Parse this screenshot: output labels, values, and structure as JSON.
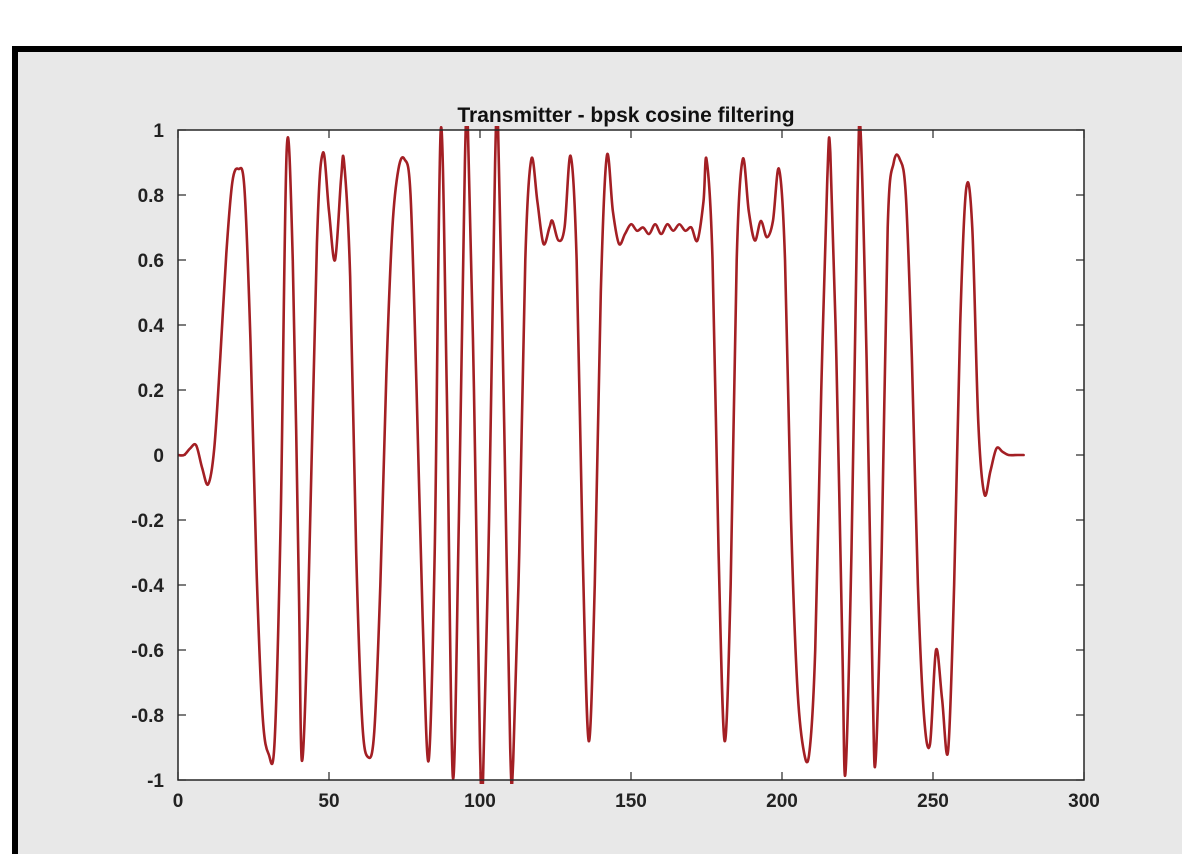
{
  "colors": {
    "figure_background": "#e8e8e8",
    "axes_background": "#ffffff",
    "axes_color": "#262626",
    "line_color": "#a31f24"
  },
  "chart_data": {
    "type": "line",
    "title": "Transmitter - bpsk cosine filtering",
    "xlabel": "",
    "ylabel": "",
    "xlim": [
      0,
      300
    ],
    "ylim": [
      -1,
      1
    ],
    "x_ticks": [
      0,
      50,
      100,
      150,
      200,
      250,
      300
    ],
    "y_ticks": [
      1,
      0.8,
      0.6,
      0.4,
      0.2,
      0,
      -0.2,
      -0.4,
      -0.6,
      -0.8,
      -1
    ],
    "x_tick_labels": [
      "0",
      "50",
      "100",
      "150",
      "200",
      "250",
      "300"
    ],
    "y_tick_labels": [
      "1",
      "0.8",
      "0.6",
      "0.4",
      "0.2",
      "0",
      "-0.2",
      "-0.4",
      "-0.6",
      "-0.8",
      "-1"
    ],
    "grid": false,
    "legend": "none",
    "series": [
      {
        "color": "#a31f24",
        "points": [
          [
            0,
            0
          ],
          [
            2,
            0
          ],
          [
            4,
            0.02
          ],
          [
            6,
            0.03
          ],
          [
            8,
            -0.04
          ],
          [
            10,
            -0.09
          ],
          [
            12,
            0.02
          ],
          [
            14,
            0.3
          ],
          [
            16,
            0.62
          ],
          [
            18,
            0.84
          ],
          [
            20,
            0.88
          ],
          [
            22,
            0.82
          ],
          [
            24,
            0.35
          ],
          [
            26,
            -0.35
          ],
          [
            28,
            -0.8
          ],
          [
            30,
            -0.92
          ],
          [
            32,
            -0.88
          ],
          [
            34,
            -0.2
          ],
          [
            36,
            0.94
          ],
          [
            38,
            0.6
          ],
          [
            40,
            -0.4
          ],
          [
            41,
            -0.94
          ],
          [
            43,
            -0.5
          ],
          [
            46,
            0.65
          ],
          [
            48,
            0.93
          ],
          [
            50,
            0.75
          ],
          [
            52,
            0.6
          ],
          [
            54,
            0.85
          ],
          [
            55,
            0.9
          ],
          [
            57,
            0.55
          ],
          [
            59,
            -0.3
          ],
          [
            61,
            -0.82
          ],
          [
            63,
            -0.93
          ],
          [
            65,
            -0.85
          ],
          [
            67,
            -0.4
          ],
          [
            69,
            0.25
          ],
          [
            71,
            0.7
          ],
          [
            73,
            0.88
          ],
          [
            75,
            0.91
          ],
          [
            77,
            0.8
          ],
          [
            79,
            0.2
          ],
          [
            81,
            -0.5
          ],
          [
            83,
            -0.94
          ],
          [
            85,
            -0.3
          ],
          [
            87,
            1.0
          ],
          [
            89,
            0.2
          ],
          [
            91,
            -0.99
          ],
          [
            93,
            -0.2
          ],
          [
            95,
            0.9
          ],
          [
            96,
            1.0
          ],
          [
            98,
            0.2
          ],
          [
            100,
            -0.9
          ],
          [
            101,
            -1.0
          ],
          [
            103,
            -0.2
          ],
          [
            105,
            0.9
          ],
          [
            106,
            1.0
          ],
          [
            108,
            0.1
          ],
          [
            110,
            -0.9
          ],
          [
            111,
            -0.94
          ],
          [
            113,
            -0.3
          ],
          [
            115,
            0.6
          ],
          [
            117,
            0.91
          ],
          [
            119,
            0.78
          ],
          [
            121,
            0.65
          ],
          [
            123,
            0.7
          ],
          [
            124,
            0.72
          ],
          [
            126,
            0.66
          ],
          [
            128,
            0.7
          ],
          [
            130,
            0.92
          ],
          [
            132,
            0.6
          ],
          [
            134,
            -0.3
          ],
          [
            136,
            -0.88
          ],
          [
            138,
            -0.4
          ],
          [
            140,
            0.5
          ],
          [
            142,
            0.92
          ],
          [
            144,
            0.75
          ],
          [
            146,
            0.65
          ],
          [
            148,
            0.68
          ],
          [
            150,
            0.71
          ],
          [
            152,
            0.69
          ],
          [
            154,
            0.7
          ],
          [
            156,
            0.68
          ],
          [
            158,
            0.71
          ],
          [
            160,
            0.68
          ],
          [
            162,
            0.71
          ],
          [
            164,
            0.69
          ],
          [
            166,
            0.71
          ],
          [
            168,
            0.69
          ],
          [
            170,
            0.7
          ],
          [
            172,
            0.66
          ],
          [
            174,
            0.78
          ],
          [
            175,
            0.91
          ],
          [
            177,
            0.6
          ],
          [
            179,
            -0.3
          ],
          [
            181,
            -0.88
          ],
          [
            183,
            -0.4
          ],
          [
            185,
            0.6
          ],
          [
            187,
            0.91
          ],
          [
            189,
            0.75
          ],
          [
            191,
            0.66
          ],
          [
            193,
            0.72
          ],
          [
            195,
            0.67
          ],
          [
            197,
            0.72
          ],
          [
            199,
            0.88
          ],
          [
            201,
            0.6
          ],
          [
            203,
            -0.2
          ],
          [
            205,
            -0.7
          ],
          [
            207,
            -0.9
          ],
          [
            209,
            -0.92
          ],
          [
            211,
            -0.6
          ],
          [
            213,
            0.2
          ],
          [
            215,
            0.85
          ],
          [
            216,
            0.93
          ],
          [
            218,
            0.3
          ],
          [
            220,
            -0.6
          ],
          [
            221,
            -0.98
          ],
          [
            223,
            -0.3
          ],
          [
            225,
            0.8
          ],
          [
            226,
            1.0
          ],
          [
            228,
            0.3
          ],
          [
            230,
            -0.7
          ],
          [
            231,
            -0.94
          ],
          [
            233,
            -0.3
          ],
          [
            235,
            0.7
          ],
          [
            237,
            0.9
          ],
          [
            239,
            0.91
          ],
          [
            241,
            0.8
          ],
          [
            243,
            0.3
          ],
          [
            245,
            -0.4
          ],
          [
            247,
            -0.8
          ],
          [
            249,
            -0.89
          ],
          [
            251,
            -0.6
          ],
          [
            253,
            -0.75
          ],
          [
            255,
            -0.91
          ],
          [
            257,
            -0.4
          ],
          [
            259,
            0.4
          ],
          [
            261,
            0.82
          ],
          [
            263,
            0.7
          ],
          [
            265,
            0.1
          ],
          [
            267,
            -0.12
          ],
          [
            269,
            -0.05
          ],
          [
            271,
            0.02
          ],
          [
            273,
            0.01
          ],
          [
            275,
            0
          ],
          [
            278,
            0
          ],
          [
            280,
            0
          ]
        ]
      }
    ]
  }
}
